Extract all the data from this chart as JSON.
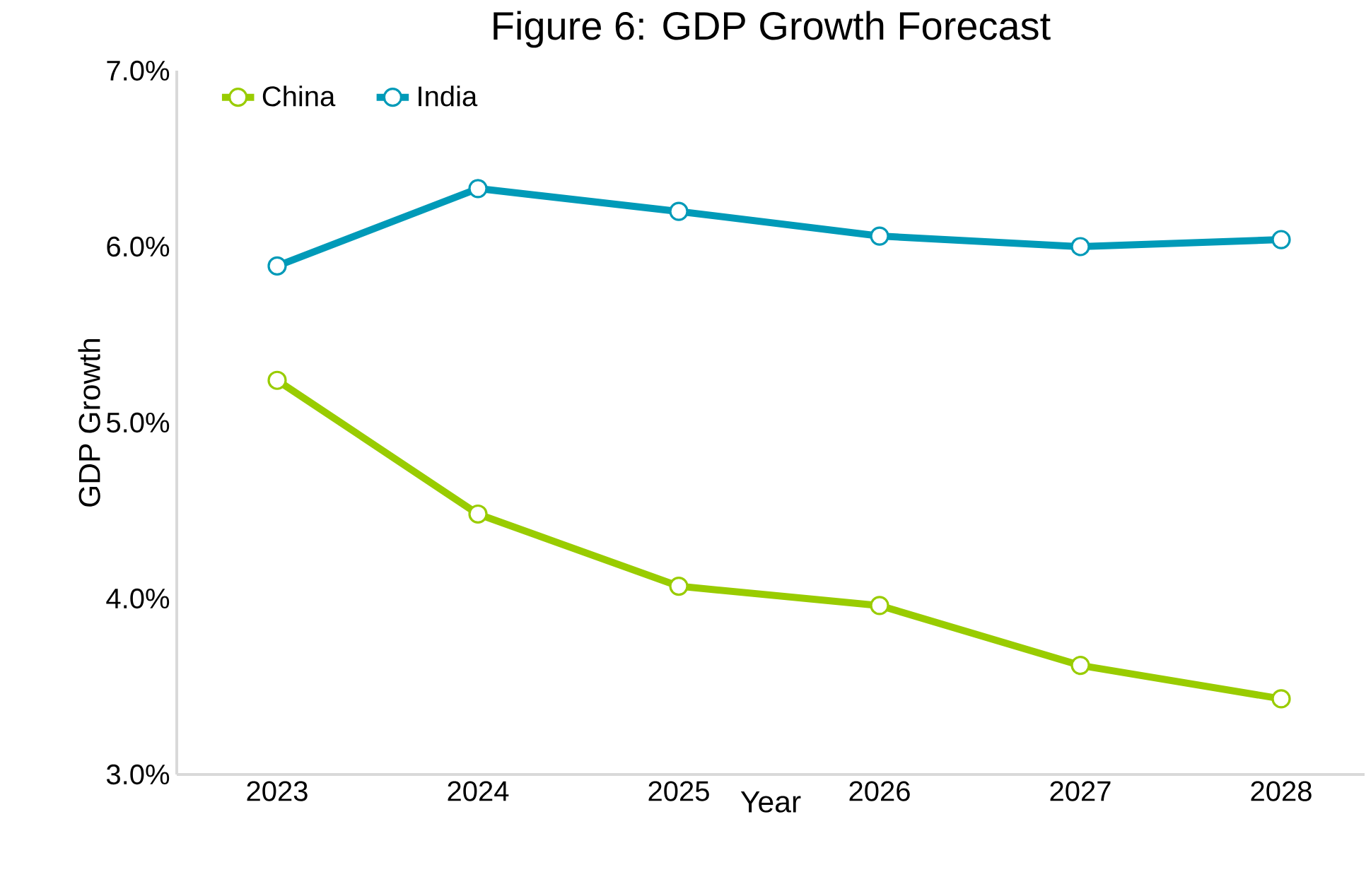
{
  "chart_data": {
    "type": "line",
    "title": "Figure 6: GDP Growth Forecast",
    "xlabel": "Year",
    "ylabel": "GDP Growth",
    "categories": [
      "2023",
      "2024",
      "2025",
      "2026",
      "2027",
      "2028"
    ],
    "series": [
      {
        "name": "China",
        "color": "#99cc00",
        "values": [
          5.24,
          4.48,
          4.07,
          3.96,
          3.62,
          3.43
        ]
      },
      {
        "name": "India",
        "color": "#009ab8",
        "values": [
          5.89,
          6.33,
          6.2,
          6.06,
          6.0,
          6.04
        ]
      }
    ],
    "ylim": [
      3,
      7
    ],
    "yticks": [
      {
        "value": 3,
        "label": "3.0%"
      },
      {
        "value": 4,
        "label": "4.0%"
      },
      {
        "value": 5,
        "label": "5.0%"
      },
      {
        "value": 6,
        "label": "6.0%"
      },
      {
        "value": 7,
        "label": "7.0%"
      }
    ],
    "grid": false,
    "legend": "top left",
    "marker": "circle",
    "line_style": "solid"
  }
}
